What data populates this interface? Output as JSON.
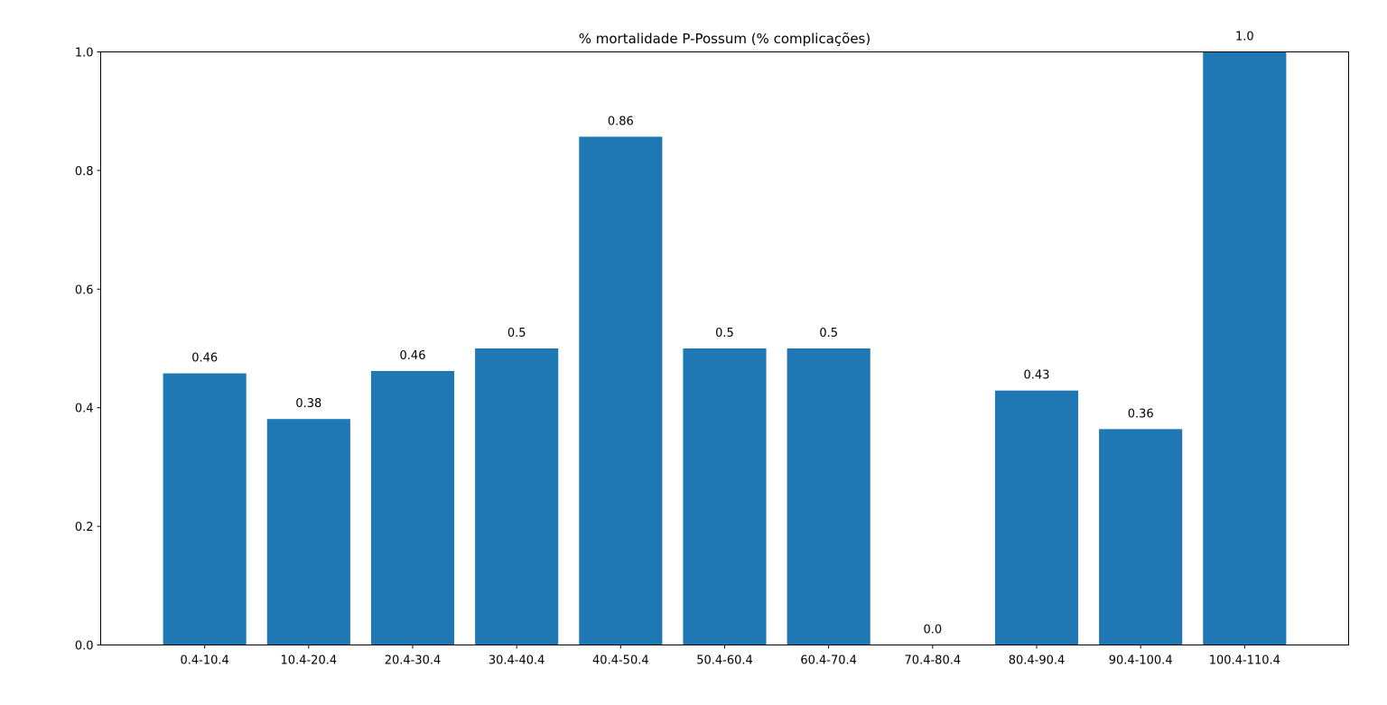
{
  "chart_data": {
    "type": "bar",
    "title": "% mortalidade P-Possum (% complicações)",
    "xlabel": "",
    "ylabel": "",
    "categories": [
      "0.4-10.4",
      "10.4-20.4",
      "20.4-30.4",
      "30.4-40.4",
      "40.4-50.4",
      "50.4-60.4",
      "60.4-70.4",
      "70.4-80.4",
      "80.4-90.4",
      "90.4-100.4",
      "100.4-110.4"
    ],
    "values": [
      0.458,
      0.381,
      0.462,
      0.5,
      0.857,
      0.5,
      0.5,
      0.0,
      0.429,
      0.364,
      1.0
    ],
    "value_labels": [
      "0.46",
      "0.38",
      "0.46",
      "0.5",
      "0.86",
      "0.5",
      "0.5",
      "0.0",
      "0.43",
      "0.36",
      "1.0"
    ],
    "ylim": [
      0,
      1.0
    ],
    "yticks": [
      0.0,
      0.2,
      0.4,
      0.6,
      0.8,
      1.0
    ],
    "ytick_labels": [
      "0.0",
      "0.2",
      "0.4",
      "0.6",
      "0.8",
      "1.0"
    ],
    "grid": false,
    "legend": "none",
    "bar_color": "#1f77b4"
  }
}
